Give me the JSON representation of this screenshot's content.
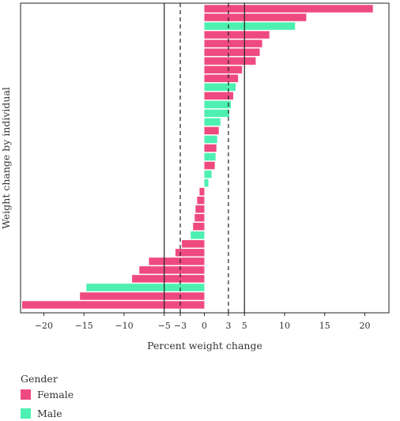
{
  "chart_data": {
    "type": "bar",
    "orientation": "horizontal",
    "xlabel": "Percent weight change",
    "ylabel": "Weight change by individual",
    "xlim": [
      -22.9,
      23.0
    ],
    "x_tick_values": [
      -20,
      -15,
      -10,
      -5,
      -3,
      0,
      3,
      5,
      10,
      15,
      20
    ],
    "x_tick_labels": [
      "−20",
      "−15",
      "−10",
      "−5",
      "−3",
      "0",
      "3",
      "5",
      "10",
      "15",
      "20"
    ],
    "reference_lines": [
      {
        "x": -5,
        "style": "solid"
      },
      {
        "x": -3,
        "style": "dashed"
      },
      {
        "x": 3,
        "style": "dashed"
      },
      {
        "x": 5,
        "style": "solid"
      }
    ],
    "grid": false,
    "legend": {
      "title": "Gender",
      "position": "bottom-left",
      "entries": [
        {
          "key": "Female",
          "label": "Female",
          "color": "#EE4A80"
        },
        {
          "key": "Male",
          "label": "Male",
          "color": "#4DF0B0"
        }
      ]
    },
    "series": [
      {
        "name": "Female",
        "values": [
          21.0,
          12.7,
          null,
          8.1,
          7.2,
          6.9,
          6.4,
          4.7,
          4.2,
          null,
          3.6,
          null,
          null,
          null,
          1.8,
          null,
          1.5,
          null,
          1.3,
          null,
          null,
          -0.6,
          -0.9,
          -1.1,
          -1.2,
          -1.4,
          null,
          -2.8,
          -3.6,
          -6.9,
          -8.1,
          -9.0,
          null,
          -15.5,
          -22.7
        ]
      },
      {
        "name": "Male",
        "values": [
          null,
          null,
          11.3,
          null,
          null,
          null,
          null,
          null,
          null,
          3.9,
          null,
          3.3,
          3.1,
          2.0,
          null,
          1.6,
          null,
          1.4,
          null,
          0.9,
          0.5,
          null,
          null,
          null,
          null,
          null,
          -1.7,
          null,
          null,
          null,
          null,
          null,
          -14.7,
          null,
          null
        ]
      }
    ]
  }
}
